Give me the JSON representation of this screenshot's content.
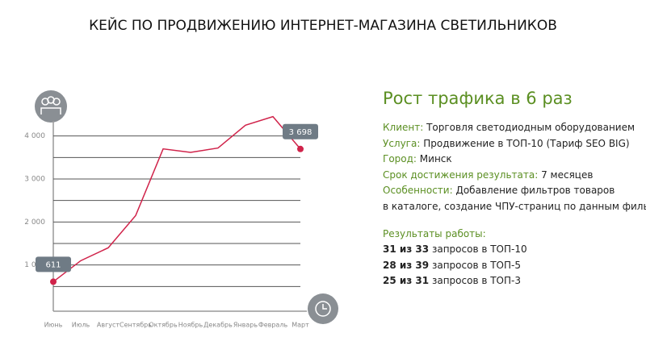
{
  "header": {
    "title": "КЕЙС ПО ПРОДВИЖЕНИЮ ИНТЕРНЕТ-МАГАЗИНА СВЕТИЛЬНИКОВ"
  },
  "chart_data": {
    "type": "line",
    "categories": [
      "Июнь",
      "Июль",
      "Август",
      "Сентябрь",
      "Октябрь",
      "Ноябрь",
      "Декабрь",
      "Январь",
      "Февраль",
      "Март"
    ],
    "values": [
      611,
      1100,
      1400,
      2150,
      3700,
      3620,
      3720,
      4250,
      4450,
      3698
    ],
    "value_labels": [
      "611",
      null,
      null,
      null,
      null,
      null,
      null,
      null,
      null,
      "3 698"
    ],
    "color": "#d0234a",
    "ylim": [
      0,
      4500
    ],
    "yticks": [
      {
        "value": 1000,
        "label": "1 000"
      },
      {
        "value": 2000,
        "label": "2 000"
      },
      {
        "value": 3000,
        "label": "3 000"
      },
      {
        "value": 4000,
        "label": "4 000"
      }
    ],
    "y_minor_ticks": [
      500,
      1500,
      2500,
      3500
    ],
    "grid": true
  },
  "info": {
    "heading": "Рост трафика в 6 раз",
    "fields": [
      {
        "label": "Клиент:",
        "value": "Торговля светодиодным оборудованием"
      },
      {
        "label": "Услуга:",
        "value": "Продвижение в ТОП-10 (Тариф SEO BIG)"
      },
      {
        "label": "Город:",
        "value": "Минск"
      },
      {
        "label": "Срок достижения результата:",
        "value": "7 месяцев"
      },
      {
        "label": "Особенности:",
        "value": "Добавление фильтров товаров"
      }
    ],
    "continuation": "в каталоге, создание ЧПУ-страниц по данным фильтрам",
    "results_heading": "Результаты работы:",
    "results": [
      {
        "bold": "31 из 33",
        "text": "запросов в ТОП-10"
      },
      {
        "bold": "28 из 39",
        "text": "запросов в ТОП-5"
      },
      {
        "bold": "25 из 31",
        "text": "запросов в ТОП-3"
      }
    ]
  }
}
